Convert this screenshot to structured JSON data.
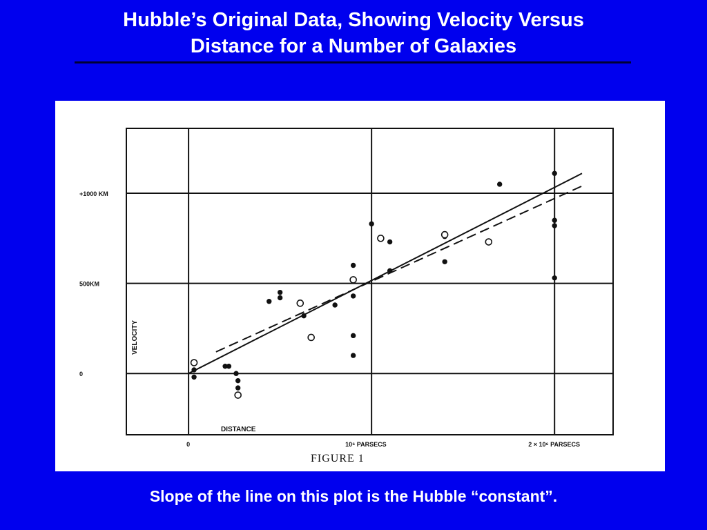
{
  "slide": {
    "title_line1": "Hubble’s Original Data, Showing Velocity Versus",
    "title_line2": "Distance for a Number of Galaxies",
    "caption": "Slope of the line on this plot is the Hubble “constant”."
  },
  "colors": {
    "background": "#0000ee",
    "text": "#ffffff",
    "figure_background": "#ffffff",
    "ink": "#111111"
  },
  "chart_data": {
    "type": "scatter",
    "title": "FIGURE 1",
    "xlabel": "DISTANCE",
    "ylabel": "VELOCITY",
    "x_tick_labels": [
      "0",
      "10⁶ PARSECS",
      "2 × 10⁶ PARSECS"
    ],
    "y_tick_labels": [
      "0",
      "500KM",
      "+1000 KM"
    ],
    "x_ticks": [
      0,
      1000000,
      2000000
    ],
    "y_ticks": [
      0,
      500,
      1000
    ],
    "xlim": [
      -340000,
      2320000
    ],
    "ylim": [
      -340,
      1360
    ],
    "grid": true,
    "series": [
      {
        "marker": "filled",
        "points": [
          {
            "x": 30000,
            "y": 20
          },
          {
            "x": 30000,
            "y": -20
          },
          {
            "x": 200000,
            "y": 40
          },
          {
            "x": 220000,
            "y": 40
          },
          {
            "x": 260000,
            "y": 0
          },
          {
            "x": 270000,
            "y": -40
          },
          {
            "x": 270000,
            "y": -80
          },
          {
            "x": 440000,
            "y": 400
          },
          {
            "x": 500000,
            "y": 450
          },
          {
            "x": 500000,
            "y": 420
          },
          {
            "x": 630000,
            "y": 320
          },
          {
            "x": 800000,
            "y": 380
          },
          {
            "x": 900000,
            "y": 600
          },
          {
            "x": 900000,
            "y": 430
          },
          {
            "x": 900000,
            "y": 210
          },
          {
            "x": 900000,
            "y": 100
          },
          {
            "x": 1000000,
            "y": 830
          },
          {
            "x": 1100000,
            "y": 730
          },
          {
            "x": 1100000,
            "y": 570
          },
          {
            "x": 1400000,
            "y": 770
          },
          {
            "x": 1400000,
            "y": 760
          },
          {
            "x": 1400000,
            "y": 620
          },
          {
            "x": 1700000,
            "y": 1050
          },
          {
            "x": 2000000,
            "y": 1110
          },
          {
            "x": 2000000,
            "y": 850
          },
          {
            "x": 2000000,
            "y": 820
          },
          {
            "x": 2000000,
            "y": 530
          }
        ]
      },
      {
        "marker": "open",
        "points": [
          {
            "x": 30000,
            "y": 60
          },
          {
            "x": 270000,
            "y": -120
          },
          {
            "x": 610000,
            "y": 390
          },
          {
            "x": 670000,
            "y": 200
          },
          {
            "x": 900000,
            "y": 520
          },
          {
            "x": 1050000,
            "y": 750
          },
          {
            "x": 1400000,
            "y": 770
          },
          {
            "x": 1640000,
            "y": 730
          }
        ]
      }
    ],
    "lines": [
      {
        "style": "solid",
        "from": [
          0,
          0
        ],
        "to": [
          2150000,
          1110
        ]
      },
      {
        "style": "dashed",
        "from": [
          150000,
          120
        ],
        "to": [
          2150000,
          1040
        ]
      }
    ]
  }
}
